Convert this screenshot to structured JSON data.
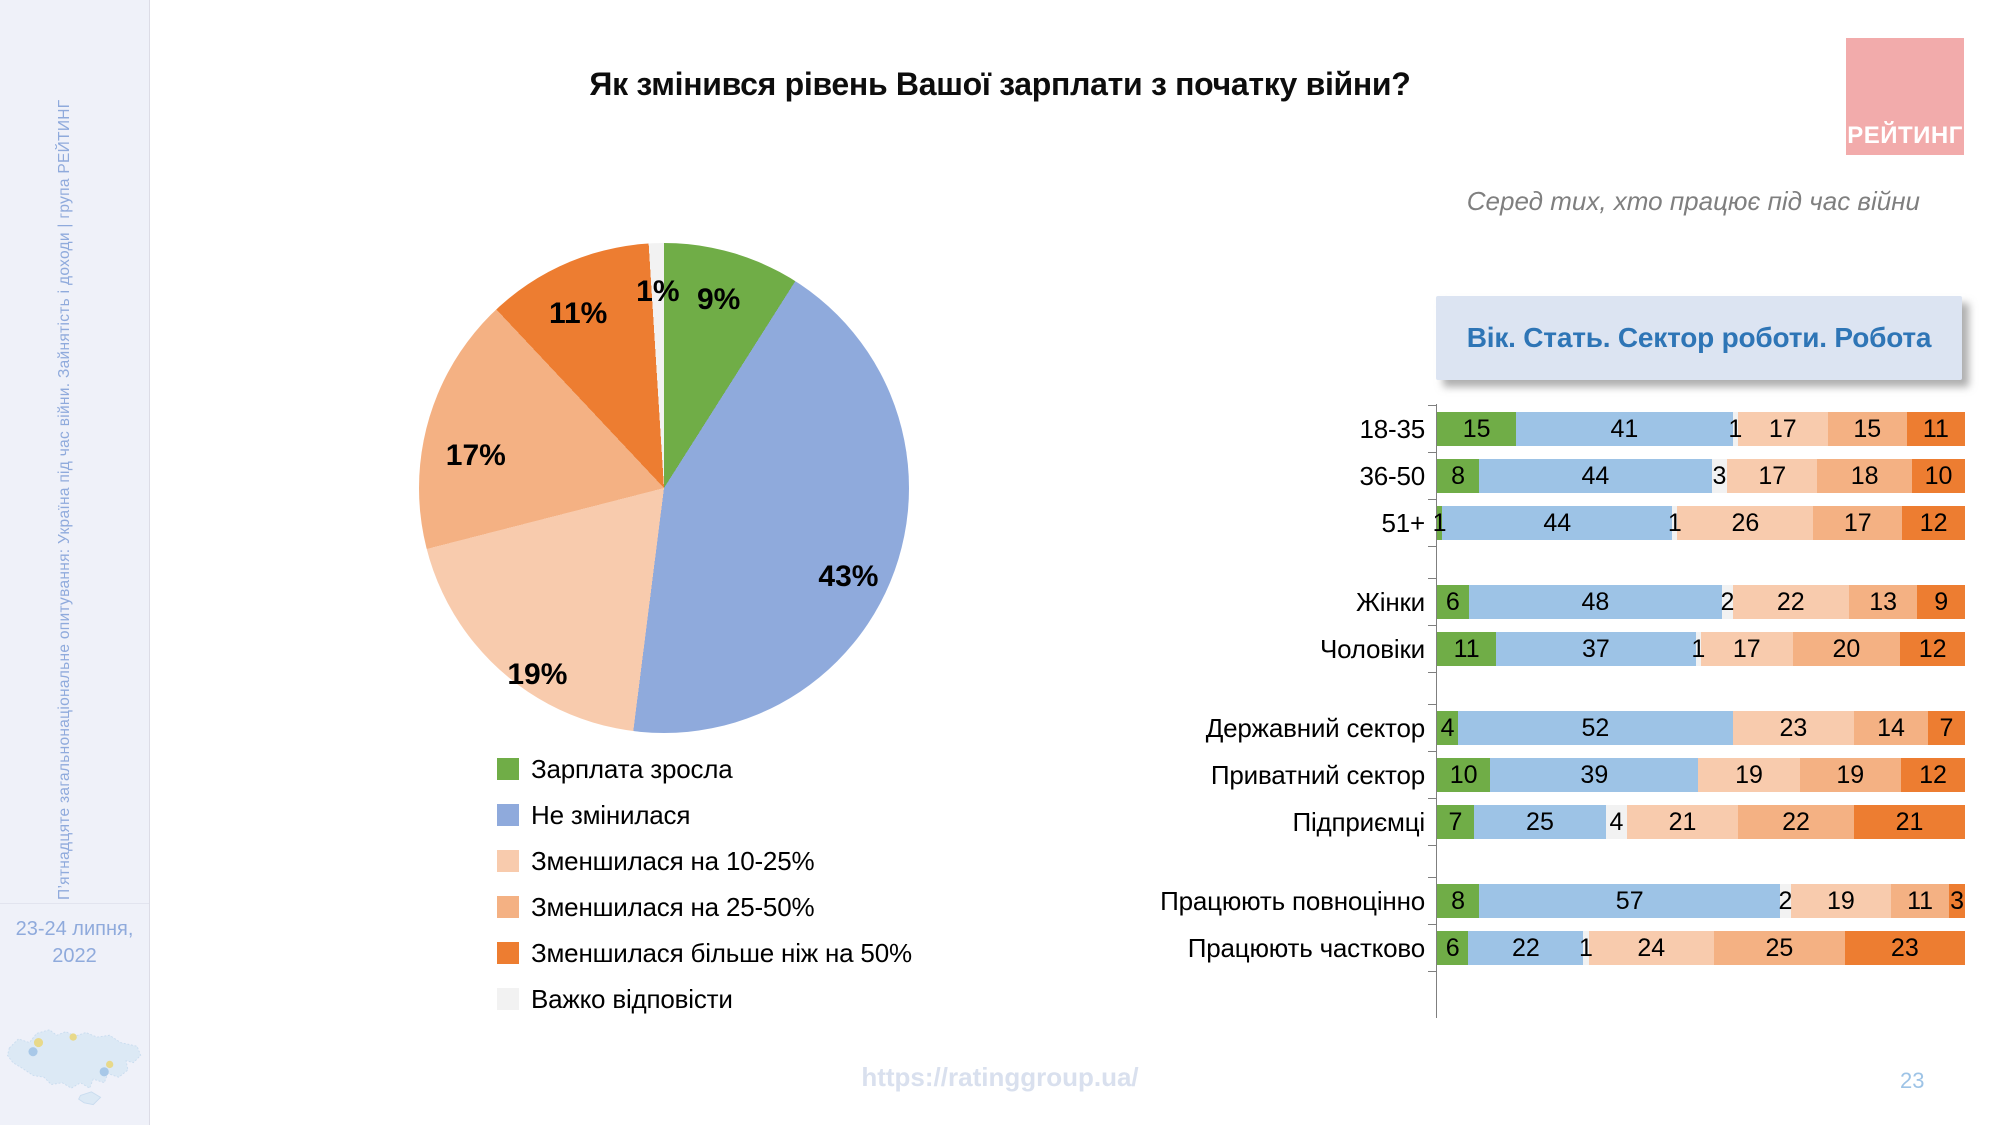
{
  "slide": {
    "title": "Як змінився рівень Вашої зарплати з початку війни?",
    "subtitle": "Серед тих, хто працює під час війни",
    "section_box_label": "Вік. Стать. Сектор роботи. Робота",
    "logo_text": "РЕЙТИНГ",
    "footer_url": "https://ratinggroup.ua/",
    "page_number": "23",
    "sidebar_text": "П’ятнадцяте загальнонаціональне опитування: Україна під час війни. Зайнятість і доходи | група РЕЙТИНГ",
    "date_line1": "23-24 липня,",
    "date_line2": "2022"
  },
  "colors": {
    "logo_bg": "#F2ABAB",
    "section_box_bg": "#DCE4F2",
    "section_box_text": "#2E75B6",
    "sidebar_bg": "#EFF1F9",
    "sidebar_text": "#8FAADC",
    "subtitle_text": "#7F7F7F",
    "footer_url_text": "#D9E0EE",
    "page_number_text": "#9DC3E6",
    "axis": "#7F7F7F"
  },
  "chart_data": [
    {
      "type": "pie",
      "start_angle_deg": 0,
      "direction": "clockwise",
      "value_label_format": "{value}%",
      "slices": [
        {
          "label": "Зарплата зросла",
          "value": 9,
          "color": "#70AD47"
        },
        {
          "label": "Не змінилася",
          "value": 43,
          "color": "#8FAADC"
        },
        {
          "label": "Зменшилася на 10-25%",
          "value": 19,
          "color": "#F8CBAD"
        },
        {
          "label": "Зменшилася на 25-50%",
          "value": 17,
          "color": "#F4B183"
        },
        {
          "label": "Зменшилася більше ніж на 50%",
          "value": 11,
          "color": "#ED7D31"
        },
        {
          "label": "Важко відповісти",
          "value": 1,
          "color": "#F2F2F2"
        }
      ],
      "legend_position": "below"
    },
    {
      "type": "bar",
      "subtype": "stacked-horizontal-100pct",
      "series_order": [
        "Зарплата зросла",
        "Не змінилася",
        "Важко відповісти",
        "Зменшилася на 10-25%",
        "Зменшилася на 25-50%",
        "Зменшилася більше ніж на 50%"
      ],
      "series_colors": [
        "#70AD47",
        "#9DC3E6",
        "#F2F2F2",
        "#F8CBAD",
        "#F4B183",
        "#ED7D31"
      ],
      "groups": [
        {
          "rows": [
            {
              "category": "18-35",
              "values": [
                15,
                41,
                1,
                17,
                15,
                11
              ]
            },
            {
              "category": "36-50",
              "values": [
                8,
                44,
                3,
                17,
                18,
                10
              ]
            },
            {
              "category": "51+",
              "values": [
                1,
                44,
                1,
                26,
                17,
                12
              ]
            }
          ]
        },
        {
          "rows": [
            {
              "category": "Жінки",
              "values": [
                6,
                48,
                2,
                22,
                13,
                9
              ]
            },
            {
              "category": "Чоловіки",
              "values": [
                11,
                37,
                1,
                17,
                20,
                12
              ]
            }
          ]
        },
        {
          "rows": [
            {
              "category": "Державний сектор",
              "values": [
                4,
                52,
                0,
                23,
                14,
                7
              ]
            },
            {
              "category": "Приватний сектор",
              "values": [
                10,
                39,
                0,
                19,
                19,
                12
              ]
            },
            {
              "category": "Підприємці",
              "values": [
                7,
                25,
                4,
                21,
                22,
                21
              ]
            }
          ]
        },
        {
          "rows": [
            {
              "category": "Працюють повноцінно",
              "values": [
                8,
                57,
                2,
                19,
                11,
                3
              ]
            },
            {
              "category": "Працюють частково",
              "values": [
                6,
                22,
                1,
                24,
                25,
                23
              ]
            }
          ]
        }
      ]
    }
  ]
}
